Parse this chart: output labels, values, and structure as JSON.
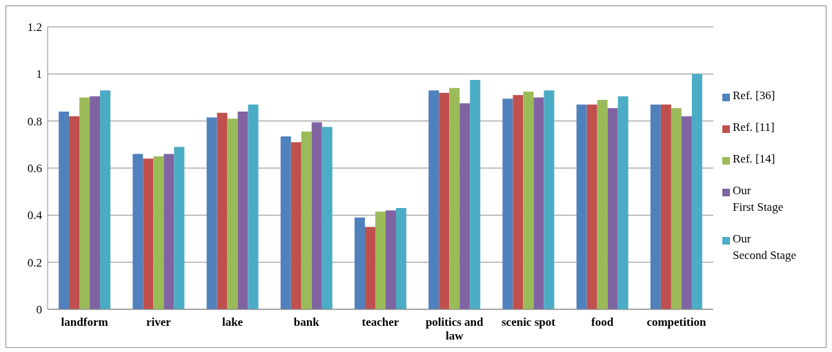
{
  "chart_data": {
    "type": "bar",
    "categories": [
      "landform",
      "river",
      "lake",
      "bank",
      "teacher",
      "politics and law",
      "scenic spot",
      "food",
      "competition"
    ],
    "series": [
      {
        "name": "Ref. [36]",
        "color": "#4f81bd",
        "values": [
          0.84,
          0.66,
          0.815,
          0.735,
          0.39,
          0.93,
          0.895,
          0.87,
          0.87
        ]
      },
      {
        "name": "Ref. [11]",
        "color": "#c0504d",
        "values": [
          0.82,
          0.64,
          0.835,
          0.71,
          0.35,
          0.92,
          0.91,
          0.87,
          0.87
        ]
      },
      {
        "name": "Ref. [14]",
        "color": "#9bbb59",
        "values": [
          0.9,
          0.65,
          0.81,
          0.755,
          0.415,
          0.94,
          0.925,
          0.89,
          0.855
        ]
      },
      {
        "name": "Our\nFirst Stage",
        "color": "#8064a2",
        "values": [
          0.905,
          0.66,
          0.84,
          0.795,
          0.42,
          0.875,
          0.9,
          0.855,
          0.82
        ]
      },
      {
        "name": "Our\nSecond Stage",
        "color": "#4bacc6",
        "values": [
          0.93,
          0.69,
          0.87,
          0.775,
          0.43,
          0.975,
          0.93,
          0.905,
          1.0
        ]
      }
    ],
    "ylim": [
      0,
      1.2
    ],
    "yticks": [
      0,
      0.2,
      0.4,
      0.6,
      0.8,
      1,
      1.2
    ],
    "grid": "y",
    "legend": "right"
  }
}
